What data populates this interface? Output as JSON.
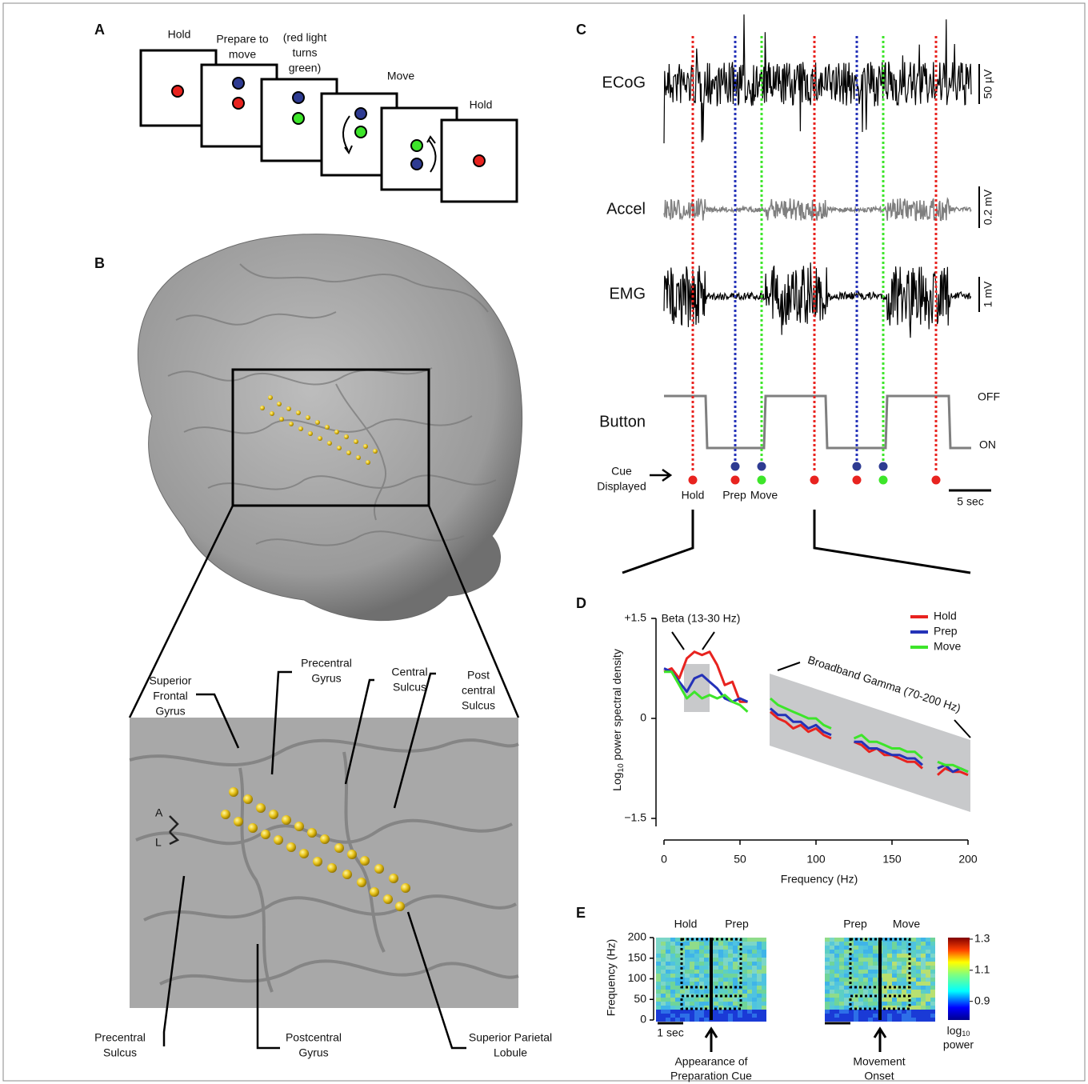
{
  "panels": {
    "a": {
      "letter": "A",
      "labels": [
        [
          "Hold"
        ],
        [
          "Prepare to",
          "move"
        ],
        [
          "(red light",
          "turns",
          "green)"
        ],
        [
          "Move"
        ],
        [
          "Hold"
        ]
      ]
    },
    "b": {
      "letter": "B",
      "labels": [
        [
          "Superior",
          "Frontal",
          "Gyrus"
        ],
        [
          "Precentral",
          "Gyrus"
        ],
        [
          "Central",
          "Sulcus"
        ],
        [
          "Post",
          "central",
          "Sulcus"
        ],
        [
          "Precentral",
          "Sulcus"
        ],
        [
          "Postcentral",
          "Gyrus"
        ],
        [
          "Superior Parietal",
          "Lobule"
        ]
      ],
      "orientation": [
        "A",
        "L"
      ]
    },
    "c": {
      "letter": "C",
      "traces": [
        "ECoG",
        "Accel",
        "EMG",
        "Button"
      ],
      "button_states": [
        "OFF",
        "ON"
      ],
      "scale_bars": [
        "50 µV",
        "0.2 mV",
        "1 mV"
      ],
      "time_scale": "5 sec",
      "cue_label": [
        "Cue",
        "Displayed"
      ],
      "cues": [
        "Hold",
        "Prep",
        "Move"
      ]
    },
    "e": {
      "letter": "E",
      "ylabel": "Frequency (Hz)",
      "ylim": [
        0,
        200
      ],
      "yticks": [
        0,
        50,
        100,
        150,
        200
      ],
      "left_labels": [
        "Hold",
        "Prep"
      ],
      "right_labels": [
        "Prep",
        "Move"
      ],
      "time_scale": "1 sec",
      "left_caption": [
        "Appearance of",
        "Preparation Cue"
      ],
      "right_caption": [
        "Movement",
        "Onset"
      ],
      "colorbar": {
        "clim": [
          0.78,
          1.31
        ],
        "ticks": [
          0.9,
          1.1,
          1.3
        ],
        "label": [
          "log",
          "10",
          "power"
        ]
      }
    }
  },
  "chart_data": {
    "type": "line",
    "panel": "D",
    "xlabel": "Frequency (Hz)",
    "ylabel": [
      "Log",
      "10",
      " power spectral density"
    ],
    "annotations": [
      "Beta (13-30 Hz)",
      "Broadband Gamma (70-200 Hz)"
    ],
    "legend": "upper right",
    "xlim": [
      0,
      200
    ],
    "xticks": [
      0,
      50,
      100,
      150,
      200
    ],
    "ylim": [
      -1.5,
      1.5
    ],
    "yticks": [
      {
        "value": 1.5,
        "label": "+1.5"
      },
      0,
      {
        "value": -1.5,
        "label": "−1.5"
      }
    ],
    "x": [
      0,
      5,
      10,
      15,
      20,
      25,
      30,
      35,
      40,
      45,
      50,
      55,
      60,
      65,
      70,
      75,
      80,
      85,
      90,
      95,
      100,
      105,
      110,
      115,
      120,
      125,
      130,
      135,
      140,
      145,
      150,
      155,
      160,
      165,
      170,
      175,
      180,
      185,
      190,
      195,
      200
    ],
    "series": [
      {
        "name": "Hold",
        "color": "#e8231f",
        "values": [
          0.7,
          0.75,
          0.6,
          0.9,
          1.0,
          0.95,
          1.0,
          0.8,
          0.5,
          0.55,
          0.25,
          0.25,
          null,
          null,
          0.1,
          0,
          -0.05,
          -0.15,
          -0.1,
          -0.2,
          -0.15,
          -0.25,
          -0.3,
          null,
          null,
          -0.35,
          -0.4,
          -0.5,
          -0.45,
          -0.55,
          -0.55,
          -0.6,
          -0.65,
          -0.65,
          -0.75,
          null,
          -0.85,
          -0.75,
          -0.8,
          -0.8,
          -0.85
        ]
      },
      {
        "name": "Prep",
        "color": "#2432b8",
        "values": [
          0.75,
          0.7,
          0.55,
          0.4,
          0.6,
          0.65,
          0.55,
          0.45,
          0.3,
          0.25,
          0.3,
          0.25,
          null,
          null,
          0.15,
          0.05,
          0.05,
          -0.05,
          -0.05,
          -0.15,
          -0.1,
          -0.2,
          -0.25,
          null,
          null,
          -0.35,
          -0.35,
          -0.45,
          -0.45,
          -0.5,
          -0.55,
          -0.55,
          -0.6,
          -0.6,
          -0.7,
          null,
          -0.75,
          -0.7,
          -0.8,
          -0.75,
          -0.8
        ]
      },
      {
        "name": "Move",
        "color": "#3de52a",
        "values": [
          0.7,
          0.7,
          0.5,
          0.3,
          0.4,
          0.3,
          0.35,
          0.3,
          0.35,
          0.25,
          0.2,
          0.1,
          null,
          null,
          0.3,
          0.2,
          0.15,
          0.1,
          0.05,
          0,
          0,
          -0.1,
          -0.15,
          null,
          null,
          -0.3,
          -0.25,
          -0.35,
          -0.35,
          -0.4,
          -0.45,
          -0.45,
          -0.5,
          -0.5,
          -0.6,
          null,
          -0.65,
          -0.7,
          -0.7,
          -0.75,
          -0.8
        ]
      }
    ]
  }
}
